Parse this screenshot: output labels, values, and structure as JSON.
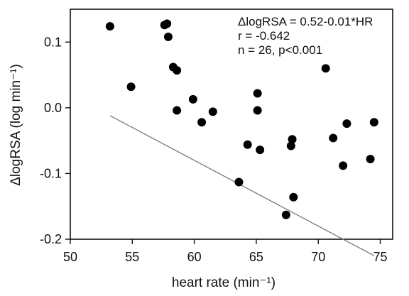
{
  "chart_data": {
    "type": "scatter",
    "xlabel": "heart rate (min⁻¹)",
    "ylabel": "ΔlogRSA (log min⁻¹)",
    "xlim": [
      50,
      76
    ],
    "ylim": [
      -0.2,
      0.15
    ],
    "xticks": [
      50,
      55,
      60,
      65,
      70,
      75
    ],
    "yticks": [
      -0.2,
      -0.1,
      0.0,
      0.1
    ],
    "xtick_labels": [
      "50",
      "55",
      "60",
      "65",
      "70",
      "75"
    ],
    "ytick_labels": [
      "-0.2",
      "-0.1",
      "0.0",
      "0.1"
    ],
    "grid": false,
    "annotations": [
      "ΔlogRSA = 0.52-0.01*HR",
      "r = -0.642",
      "n = 26, p<0.001"
    ],
    "points": [
      {
        "x": 53.2,
        "y": 0.124
      },
      {
        "x": 54.9,
        "y": 0.032
      },
      {
        "x": 57.6,
        "y": 0.126
      },
      {
        "x": 57.8,
        "y": 0.128
      },
      {
        "x": 57.9,
        "y": 0.108
      },
      {
        "x": 58.3,
        "y": 0.062
      },
      {
        "x": 58.6,
        "y": 0.057
      },
      {
        "x": 58.6,
        "y": -0.004
      },
      {
        "x": 59.9,
        "y": 0.013
      },
      {
        "x": 60.6,
        "y": -0.022
      },
      {
        "x": 61.5,
        "y": -0.006
      },
      {
        "x": 63.6,
        "y": -0.113
      },
      {
        "x": 64.3,
        "y": -0.056
      },
      {
        "x": 65.1,
        "y": 0.022
      },
      {
        "x": 65.1,
        "y": -0.004
      },
      {
        "x": 65.3,
        "y": -0.064
      },
      {
        "x": 67.4,
        "y": -0.163
      },
      {
        "x": 67.8,
        "y": -0.058
      },
      {
        "x": 67.9,
        "y": -0.048
      },
      {
        "x": 68.0,
        "y": -0.136
      },
      {
        "x": 70.6,
        "y": 0.06
      },
      {
        "x": 71.2,
        "y": -0.046
      },
      {
        "x": 72.0,
        "y": -0.088
      },
      {
        "x": 72.3,
        "y": -0.024
      },
      {
        "x": 74.2,
        "y": -0.078
      },
      {
        "x": 74.5,
        "y": -0.022
      }
    ],
    "fit_line": {
      "x": [
        53.2,
        74.5
      ],
      "y": 0.52
    }
  }
}
